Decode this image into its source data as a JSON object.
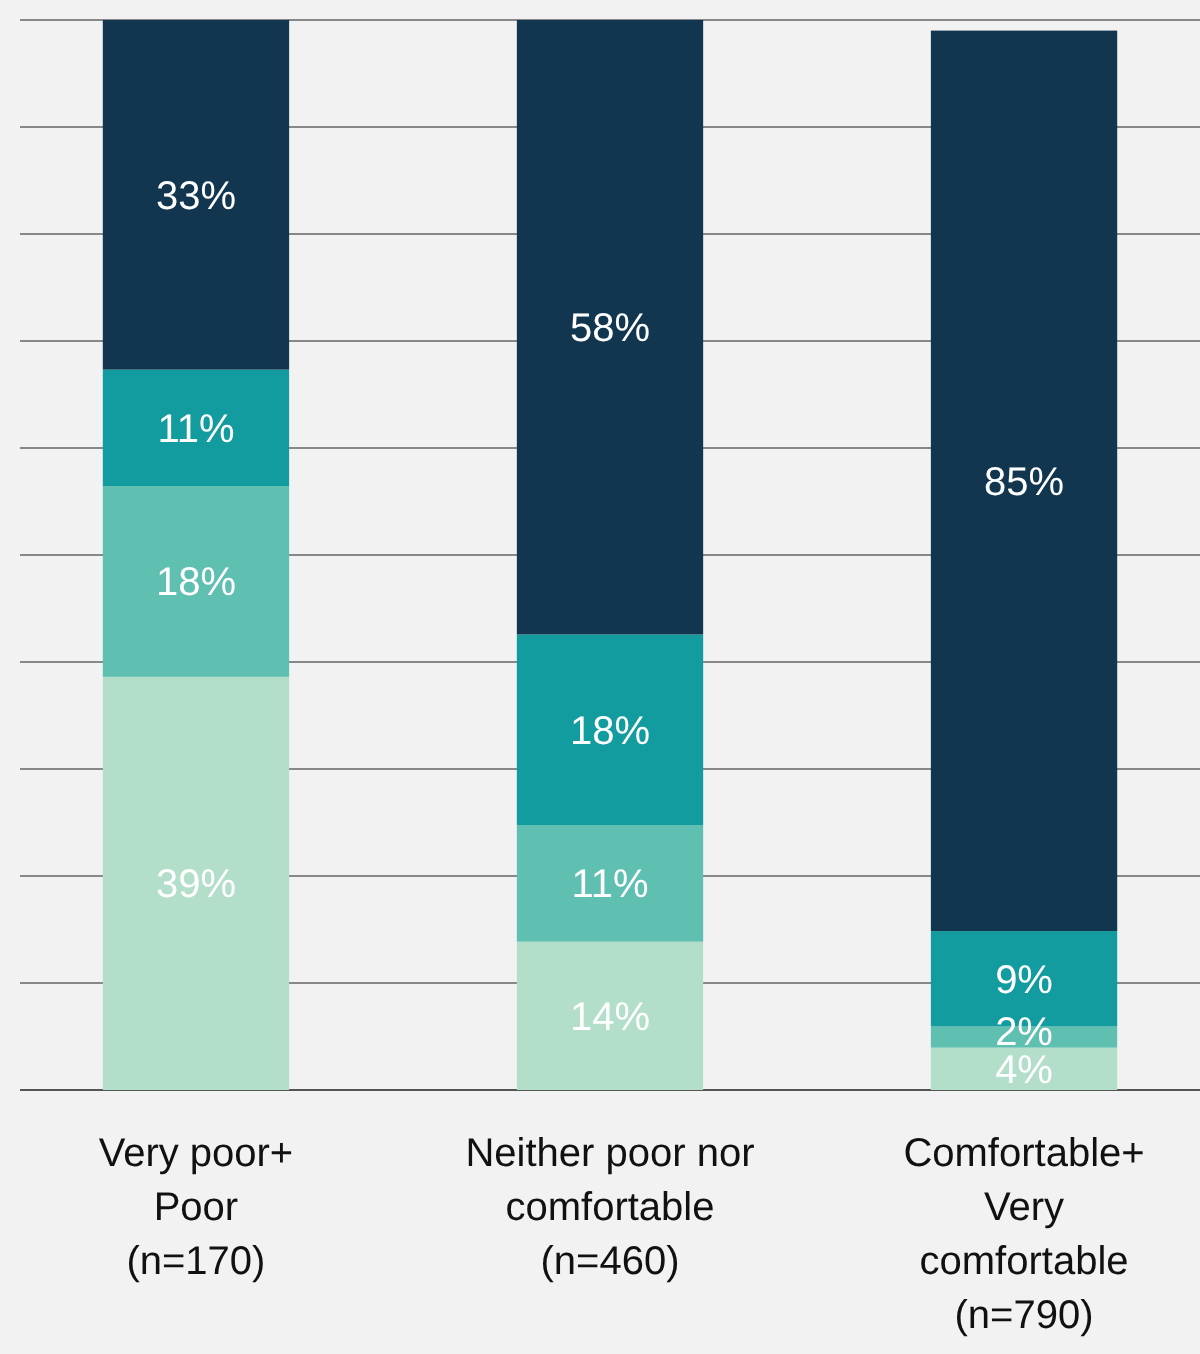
{
  "chart_data": {
    "type": "bar",
    "stacked": true,
    "categories": [
      "Very poor+\nPoor\n(n=170)",
      "Neither poor nor\ncomfortable\n(n=460)",
      "Comfortable+\nVery\ncomfortable\n(n=790)"
    ],
    "series": [
      {
        "color": "#b3dfca",
        "values": [
          39,
          14,
          4
        ],
        "value_labels": [
          "39%",
          "14%",
          "4%"
        ]
      },
      {
        "color": "#5fbfb0",
        "values": [
          18,
          11,
          2
        ],
        "value_labels": [
          "18%",
          "11%",
          "2%"
        ]
      },
      {
        "color": "#139ca0",
        "values": [
          11,
          18,
          9
        ],
        "value_labels": [
          "11%",
          "18%",
          "9%"
        ]
      },
      {
        "color": "#12364f",
        "values": [
          33,
          58,
          85
        ],
        "value_labels": [
          "33%",
          "58%",
          "85%"
        ]
      }
    ],
    "tick_labels": "x",
    "grid": true
  }
}
